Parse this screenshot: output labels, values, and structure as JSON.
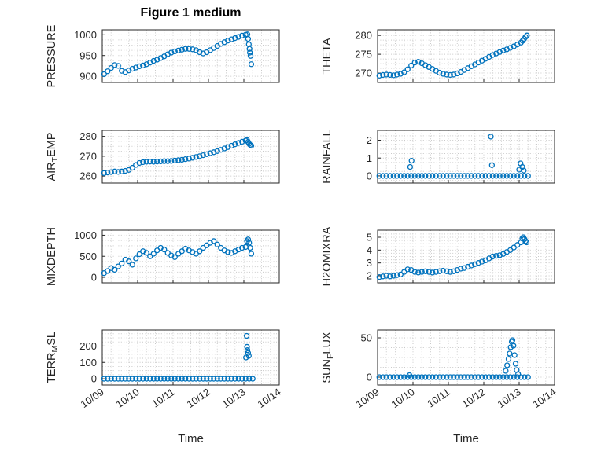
{
  "title": "Figure 1 medium",
  "xlabel": "Time",
  "marker": {
    "color": "#0072BD",
    "size": 3
  },
  "axes": {
    "xlim": [
      9,
      14
    ],
    "xticks": [
      9,
      10,
      11,
      12,
      13,
      14
    ],
    "xtick_labels": [
      "10/09",
      "10/10",
      "10/11",
      "10/12",
      "10/13",
      "10/14"
    ]
  },
  "chart_data": [
    {
      "type": "scatter",
      "name": "PRESSURE",
      "row": 0,
      "col": 0,
      "show_xticklabels": false,
      "ylabel": {
        "pre": "PRESSURE",
        "sub": "",
        "post": ""
      },
      "ylim": [
        885,
        1012
      ],
      "yticks": [
        900,
        950,
        1000
      ],
      "series": {
        "x_start": 9.05,
        "x_step": 0.1,
        "y": [
          905,
          912,
          920,
          927,
          925,
          913,
          910,
          914,
          918,
          921,
          924,
          926,
          929,
          933,
          937,
          940,
          944,
          948,
          953,
          957,
          960,
          962,
          964,
          966,
          966,
          965,
          963,
          958,
          955,
          958,
          963,
          968,
          973,
          978,
          982,
          986,
          989,
          992,
          995,
          998,
          1000
        ]
      },
      "extra_points": [
        [
          13.1,
          1001
        ],
        [
          13.12,
          990
        ],
        [
          13.14,
          977
        ],
        [
          13.16,
          966
        ],
        [
          13.17,
          957
        ],
        [
          13.19,
          949
        ],
        [
          13.21,
          929
        ]
      ]
    },
    {
      "type": "scatter",
      "name": "THETA",
      "row": 0,
      "col": 1,
      "show_xticklabels": false,
      "ylabel": {
        "pre": "THETA",
        "sub": "",
        "post": ""
      },
      "ylim": [
        267.5,
        281.5
      ],
      "yticks": [
        270,
        275,
        280
      ],
      "series": {
        "x_start": 9.05,
        "x_step": 0.1,
        "y": [
          269.3,
          269.5,
          269.6,
          269.5,
          269.4,
          269.6,
          269.8,
          270.2,
          271.0,
          272.0,
          272.8,
          273.0,
          272.6,
          272.1,
          271.6,
          271.1,
          270.6,
          270.1,
          269.8,
          269.6,
          269.5,
          269.6,
          269.9,
          270.3,
          270.8,
          271.3,
          271.8,
          272.3,
          272.8,
          273.3,
          273.8,
          274.3,
          274.8,
          275.2,
          275.6,
          276.0,
          276.3,
          276.7,
          277.1,
          277.6,
          278.1
        ]
      },
      "extra_points": [
        [
          13.1,
          278.6
        ],
        [
          13.14,
          279.1
        ],
        [
          13.18,
          279.6
        ],
        [
          13.22,
          280.0
        ]
      ]
    },
    {
      "type": "scatter",
      "name": "AIR_TEMP",
      "row": 1,
      "col": 0,
      "show_xticklabels": false,
      "ylabel": {
        "pre": "AIR",
        "sub": "T",
        "post": "EMP"
      },
      "ylim": [
        256.5,
        283
      ],
      "yticks": [
        260,
        270,
        280
      ],
      "series": {
        "x_start": 9.05,
        "x_step": 0.1,
        "y": [
          261.5,
          261.8,
          262.0,
          262.3,
          262.1,
          262.3,
          262.6,
          263.1,
          264.2,
          265.6,
          266.6,
          267.0,
          267.2,
          267.3,
          267.2,
          267.3,
          267.4,
          267.5,
          267.5,
          267.6,
          267.8,
          268.0,
          268.2,
          268.5,
          268.8,
          269.2,
          269.6,
          270.0,
          270.5,
          271.0,
          271.5,
          272.0,
          272.6,
          273.2,
          273.9,
          274.6,
          275.3,
          276.0,
          276.7,
          277.3,
          277.9
        ]
      },
      "extra_points": [
        [
          13.09,
          278.1
        ],
        [
          13.12,
          277.2
        ],
        [
          13.15,
          276.3
        ],
        [
          13.18,
          275.7
        ],
        [
          13.21,
          275.3
        ]
      ]
    },
    {
      "type": "scatter",
      "name": "RAINFALL",
      "row": 1,
      "col": 1,
      "show_xticklabels": false,
      "ylabel": {
        "pre": "RAINFALL",
        "sub": "",
        "post": ""
      },
      "ylim": [
        -0.4,
        2.55
      ],
      "yticks": [
        0,
        1,
        2
      ],
      "series": {
        "x_start": 9.05,
        "x_step": 0.1,
        "y": [
          0,
          0,
          0,
          0,
          0,
          0,
          0,
          0,
          0,
          0,
          0,
          0,
          0,
          0,
          0,
          0,
          0,
          0,
          0,
          0,
          0,
          0,
          0,
          0,
          0,
          0,
          0,
          0,
          0,
          0,
          0,
          0,
          0,
          0,
          0,
          0,
          0,
          0,
          0,
          0,
          0,
          0,
          0
        ]
      },
      "extra_points": [
        [
          9.92,
          0.5
        ],
        [
          9.96,
          0.85
        ],
        [
          12.2,
          2.2
        ],
        [
          12.23,
          0.6
        ],
        [
          13.0,
          0.35
        ],
        [
          13.04,
          0.7
        ],
        [
          13.09,
          0.5
        ],
        [
          13.13,
          0.3
        ]
      ]
    },
    {
      "type": "scatter",
      "name": "MIXDEPTH",
      "row": 2,
      "col": 0,
      "show_xticklabels": false,
      "ylabel": {
        "pre": "MIXDEPTH",
        "sub": "",
        "post": ""
      },
      "ylim": [
        -130,
        1120
      ],
      "yticks": [
        0,
        500,
        1000
      ],
      "series": {
        "x_start": 9.05,
        "x_step": 0.1,
        "y": [
          100,
          150,
          220,
          180,
          260,
          330,
          420,
          380,
          300,
          450,
          550,
          620,
          580,
          500,
          560,
          640,
          700,
          660,
          580,
          520,
          480,
          560,
          620,
          680,
          640,
          600,
          560,
          620,
          700,
          760,
          820,
          860,
          780,
          700,
          640,
          600,
          580,
          620,
          660,
          700,
          720
        ]
      },
      "extra_points": [
        [
          13.09,
          860
        ],
        [
          13.12,
          900
        ],
        [
          13.15,
          820
        ],
        [
          13.18,
          700
        ],
        [
          13.21,
          560
        ]
      ]
    },
    {
      "type": "scatter",
      "name": "H2OMIXRA",
      "row": 2,
      "col": 1,
      "show_xticklabels": false,
      "ylabel": {
        "pre": "H2OMIXRA",
        "sub": "",
        "post": ""
      },
      "ylim": [
        1.45,
        5.55
      ],
      "yticks": [
        2,
        3,
        4,
        5
      ],
      "series": {
        "x_start": 9.05,
        "x_step": 0.1,
        "y": [
          1.9,
          1.95,
          2.0,
          1.95,
          2.0,
          2.05,
          2.1,
          2.3,
          2.5,
          2.45,
          2.3,
          2.25,
          2.3,
          2.35,
          2.3,
          2.25,
          2.3,
          2.35,
          2.4,
          2.35,
          2.3,
          2.35,
          2.45,
          2.55,
          2.6,
          2.7,
          2.8,
          2.9,
          3.0,
          3.1,
          3.2,
          3.35,
          3.5,
          3.55,
          3.6,
          3.7,
          3.85,
          4.0,
          4.2,
          4.4,
          4.6
        ]
      },
      "extra_points": [
        [
          13.09,
          4.9
        ],
        [
          13.12,
          5.0
        ],
        [
          13.15,
          4.85
        ],
        [
          13.18,
          4.7
        ],
        [
          13.21,
          4.6
        ]
      ]
    },
    {
      "type": "scatter",
      "name": "TERR_MSL",
      "row": 3,
      "col": 0,
      "show_xticklabels": true,
      "ylabel": {
        "pre": "TERR",
        "sub": "M",
        "post": "SL"
      },
      "ylim": [
        -38,
        298
      ],
      "yticks": [
        0,
        100,
        200
      ],
      "series": {
        "x_start": 9.05,
        "x_step": 0.1,
        "y": [
          0,
          0,
          0,
          0,
          0,
          0,
          0,
          0,
          0,
          0,
          0,
          0,
          0,
          0,
          0,
          0,
          0,
          0,
          0,
          0,
          0,
          0,
          0,
          0,
          0,
          0,
          0,
          0,
          0,
          0,
          0,
          0,
          0,
          0,
          0,
          0,
          0,
          0,
          0,
          0,
          0,
          0,
          0
        ]
      },
      "extra_points": [
        [
          13.06,
          130
        ],
        [
          13.08,
          262
        ],
        [
          13.09,
          195
        ],
        [
          13.1,
          175
        ],
        [
          13.12,
          158
        ],
        [
          13.14,
          140
        ]
      ]
    },
    {
      "type": "scatter",
      "name": "SUN_FLUX",
      "row": 3,
      "col": 1,
      "show_xticklabels": true,
      "ylabel": {
        "pre": "SUN",
        "sub": "F",
        "post": "LUX"
      },
      "ylim": [
        -10,
        60
      ],
      "yticks": [
        0,
        50
      ],
      "series": {
        "x_start": 9.05,
        "x_step": 0.1,
        "y": [
          0,
          0,
          0,
          0,
          0,
          0,
          0,
          0,
          0,
          0,
          0,
          0,
          0,
          0,
          0,
          0,
          0,
          0,
          0,
          0,
          0,
          0,
          0,
          0,
          0,
          0,
          0,
          0,
          0,
          0,
          0,
          0,
          0,
          0,
          0,
          0,
          0,
          0,
          0,
          0,
          0,
          0,
          0
        ]
      },
      "extra_points": [
        [
          9.9,
          2.5
        ],
        [
          12.62,
          8
        ],
        [
          12.66,
          15
        ],
        [
          12.7,
          23
        ],
        [
          12.73,
          30
        ],
        [
          12.76,
          38
        ],
        [
          12.79,
          45
        ],
        [
          12.81,
          47
        ],
        [
          12.84,
          40
        ],
        [
          12.87,
          28
        ],
        [
          12.9,
          17
        ],
        [
          12.93,
          9
        ],
        [
          12.97,
          4
        ]
      ]
    }
  ]
}
